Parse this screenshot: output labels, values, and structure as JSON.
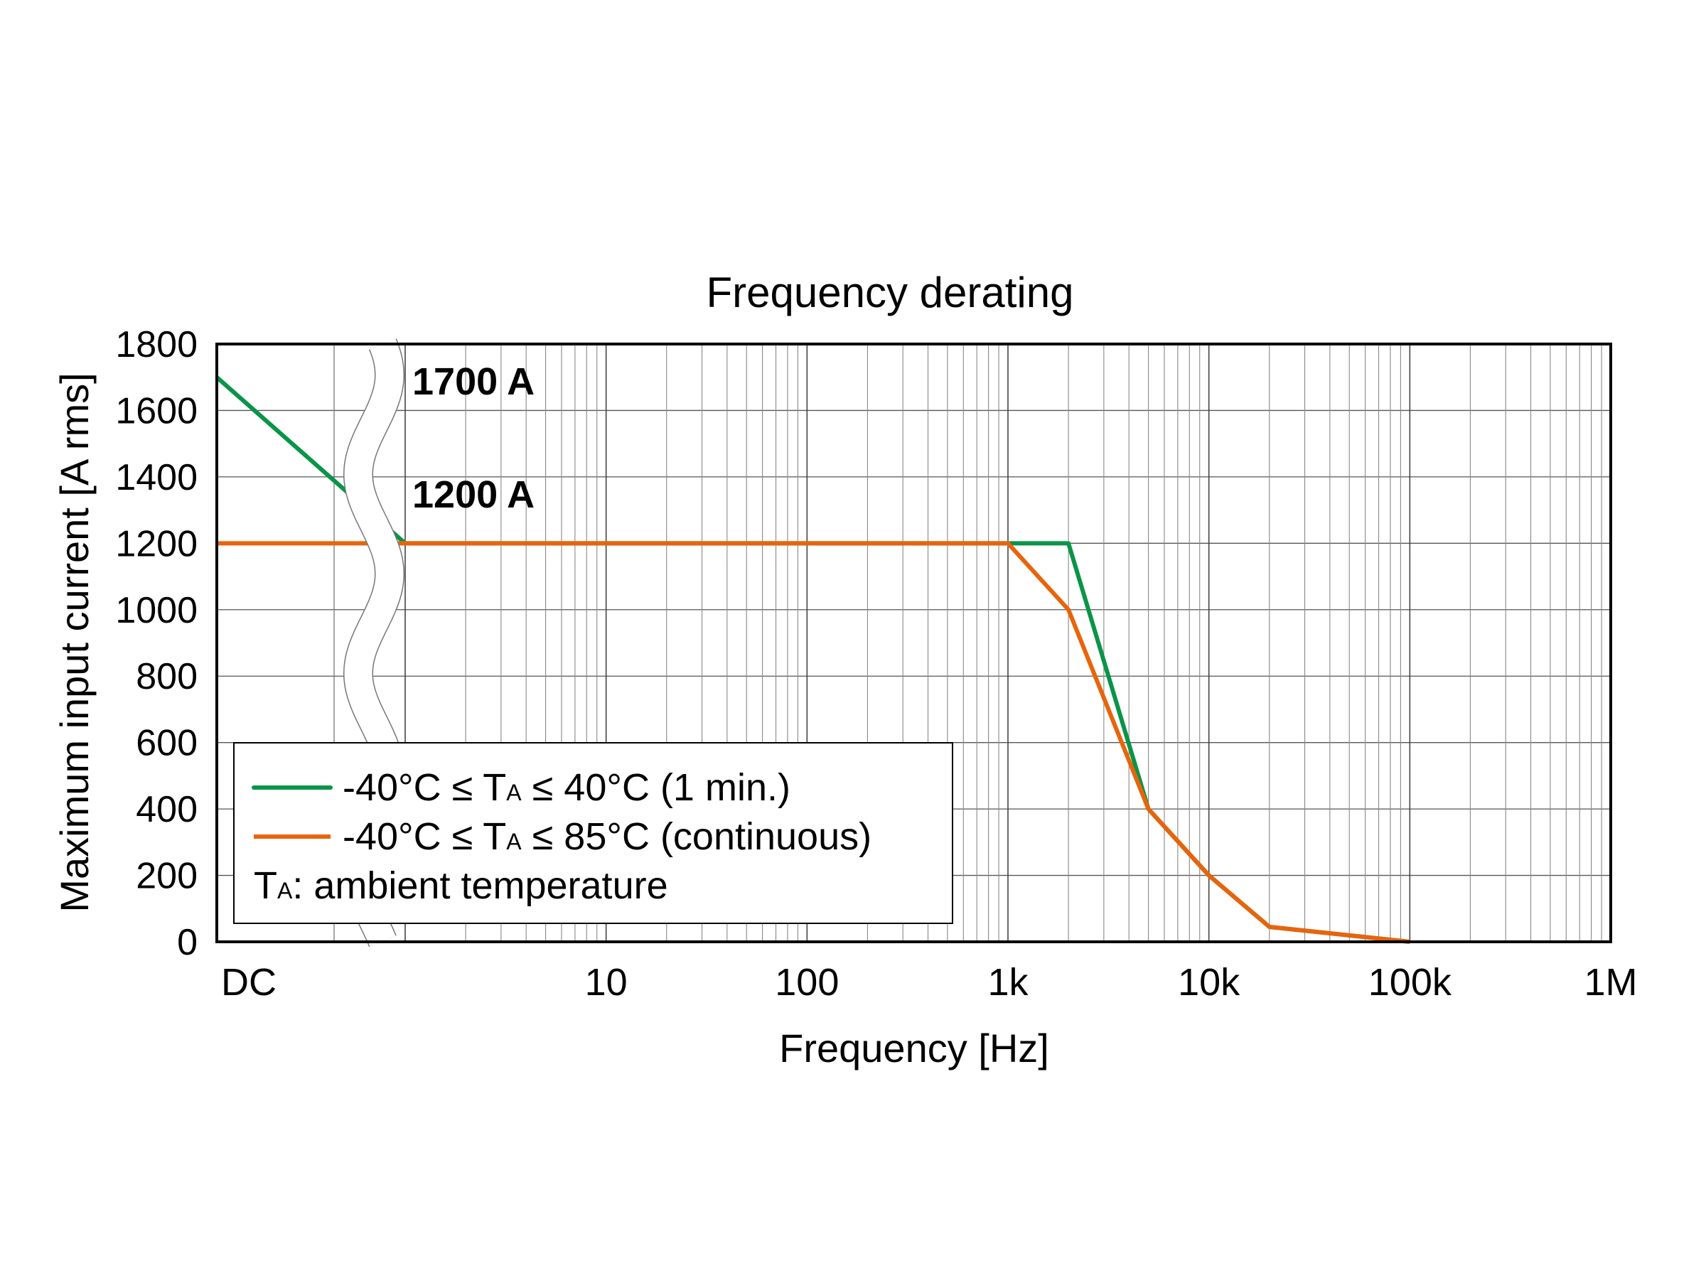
{
  "chart_data": {
    "type": "line",
    "title": "Frequency derating",
    "xlabel": "Frequency [Hz]",
    "ylabel": "Maximum input current [A rms]",
    "x_scale": "log",
    "x_has_dc_break": true,
    "xlim": [
      1,
      1000000
    ],
    "ylim": [
      0,
      1800
    ],
    "grid": true,
    "x_tick_labels": [
      "DC",
      "10",
      "100",
      "1k",
      "10k",
      "100k",
      "1M"
    ],
    "y_ticks": [
      0,
      200,
      400,
      600,
      800,
      1000,
      1200,
      1400,
      1600,
      1800
    ],
    "annotations": [
      "1700 A",
      "1200 A"
    ],
    "legend_placement": "bottom-left",
    "series": [
      {
        "name": "-40°C ≤ TA ≤ 40°C (1 min.)",
        "legend_parts": [
          "-40°C ≤ T",
          "A",
          " ≤ 40°C (1 min.)"
        ],
        "color": "#0a9448",
        "points": [
          [
            "DC",
            1700
          ],
          [
            1,
            1200
          ],
          [
            2000,
            1200
          ],
          [
            5000,
            400
          ],
          [
            10000,
            200
          ],
          [
            20000,
            45
          ],
          [
            100000,
            0
          ]
        ]
      },
      {
        "name": "-40°C ≤ TA ≤ 85°C (continuous)",
        "legend_parts": [
          "-40°C ≤ T",
          "A",
          " ≤ 85°C (continuous)"
        ],
        "color": "#e8640c",
        "points": [
          [
            "DC",
            1200
          ],
          [
            1,
            1200
          ],
          [
            1000,
            1200
          ],
          [
            2000,
            1000
          ],
          [
            5000,
            400
          ],
          [
            10000,
            200
          ],
          [
            20000,
            45
          ],
          [
            100000,
            0
          ]
        ]
      }
    ],
    "legend_note_parts": [
      "T",
      "A",
      ": ambient temperature"
    ]
  }
}
